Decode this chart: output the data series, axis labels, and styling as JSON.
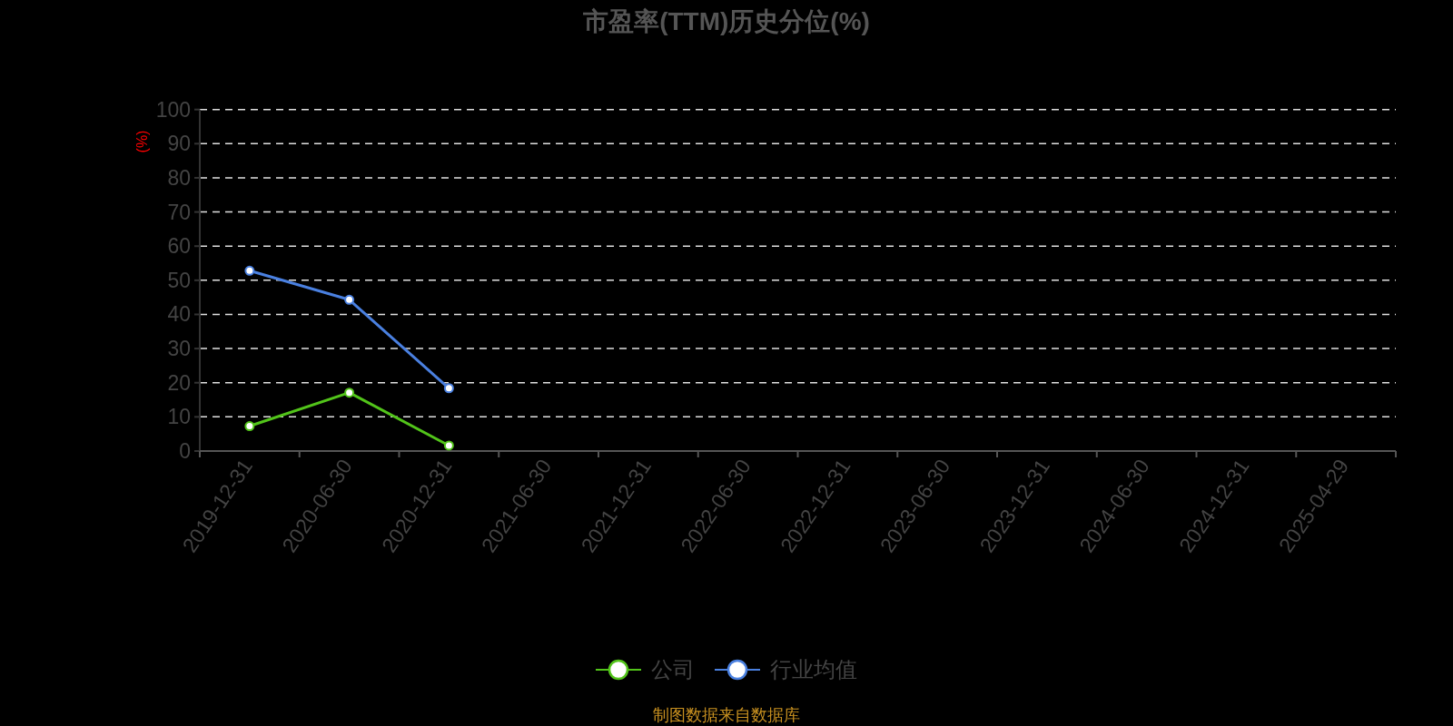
{
  "chart_data": {
    "type": "line",
    "title": "市盈率(TTM)历史分位(%)",
    "ylabel": "(%)",
    "categories": [
      "2019-12-31",
      "2020-06-30",
      "2020-12-31",
      "2021-06-30",
      "2021-12-31",
      "2022-06-30",
      "2022-12-31",
      "2023-06-30",
      "2023-12-31",
      "2024-06-30",
      "2024-12-31",
      "2025-04-29"
    ],
    "series": [
      {
        "name": "公司",
        "color": "#52c41a",
        "values": [
          7.3,
          17.1,
          1.6,
          null,
          null,
          null,
          null,
          null,
          null,
          null,
          null,
          null
        ]
      },
      {
        "name": "行业均值",
        "color": "#4a80e0",
        "values": [
          52.8,
          44.3,
          18.4,
          null,
          null,
          null,
          null,
          null,
          null,
          null,
          null,
          null
        ]
      }
    ],
    "ylim": [
      0,
      100
    ],
    "yticks": [
      0,
      10,
      20,
      30,
      40,
      50,
      60,
      70,
      80,
      90,
      100
    ],
    "grid": "y",
    "legend": "bottom",
    "marker": "circle",
    "line_style": "solid",
    "annotations": [
      "制图数据来自数据库"
    ]
  }
}
